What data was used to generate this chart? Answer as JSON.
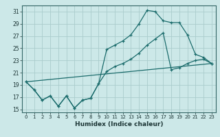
{
  "title": "",
  "xlabel": "Humidex (Indice chaleur)",
  "bg_color": "#cce8e8",
  "grid_color": "#aacccc",
  "line_color": "#1a6b6b",
  "xlim": [
    -0.5,
    23.5
  ],
  "ylim": [
    14.5,
    32.0
  ],
  "xticks": [
    0,
    1,
    2,
    3,
    4,
    5,
    6,
    7,
    8,
    9,
    10,
    11,
    12,
    13,
    14,
    15,
    16,
    17,
    18,
    19,
    20,
    21,
    22,
    23
  ],
  "yticks": [
    15,
    17,
    19,
    21,
    23,
    25,
    27,
    29,
    31
  ],
  "line1_x": [
    0,
    1,
    2,
    3,
    4,
    5,
    6,
    7,
    8,
    9,
    10,
    11,
    12,
    13,
    14,
    15,
    16,
    17,
    18,
    19,
    20,
    21,
    22,
    23
  ],
  "line1_y": [
    19.5,
    18.2,
    16.5,
    17.2,
    15.5,
    17.2,
    15.2,
    16.5,
    16.8,
    19.2,
    24.8,
    25.5,
    26.2,
    27.2,
    29.0,
    31.2,
    31.0,
    29.5,
    29.2,
    29.2,
    27.2,
    24.0,
    23.5,
    22.5
  ],
  "line2_x": [
    0,
    1,
    2,
    3,
    4,
    5,
    6,
    7,
    8,
    9,
    10,
    11,
    12,
    13,
    14,
    15,
    16,
    17,
    18,
    19,
    20,
    21,
    22,
    23
  ],
  "line2_y": [
    19.5,
    18.2,
    16.5,
    17.2,
    15.5,
    17.2,
    15.2,
    16.5,
    16.8,
    19.2,
    21.2,
    22.0,
    22.5,
    23.2,
    24.2,
    25.5,
    26.5,
    27.5,
    21.5,
    21.8,
    22.5,
    23.0,
    23.2,
    22.5
  ],
  "line3_x": [
    0,
    23
  ],
  "line3_y": [
    19.5,
    22.5
  ]
}
